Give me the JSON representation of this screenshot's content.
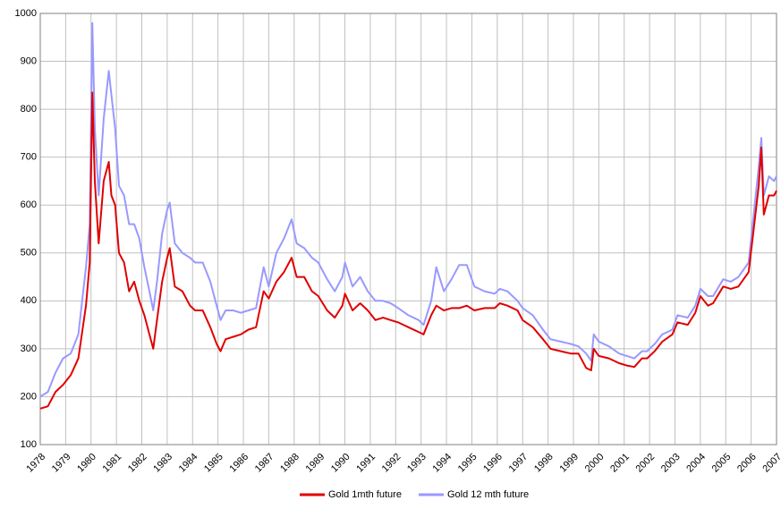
{
  "chart_data": {
    "type": "line",
    "x": [
      1978.0,
      1978.3,
      1978.6,
      1978.9,
      1979.2,
      1979.5,
      1979.8,
      1979.95,
      1980.05,
      1980.15,
      1980.3,
      1980.5,
      1980.7,
      1980.8,
      1980.95,
      1981.1,
      1981.3,
      1981.5,
      1981.7,
      1981.9,
      1982.1,
      1982.3,
      1982.45,
      1982.6,
      1982.8,
      1983.0,
      1983.1,
      1983.3,
      1983.6,
      1983.9,
      1984.1,
      1984.4,
      1984.7,
      1984.95,
      1985.1,
      1985.3,
      1985.6,
      1985.9,
      1986.2,
      1986.5,
      1986.8,
      1987.0,
      1987.3,
      1987.6,
      1987.9,
      1988.1,
      1988.4,
      1988.7,
      1988.95,
      1989.3,
      1989.6,
      1989.9,
      1990.0,
      1990.3,
      1990.6,
      1990.9,
      1991.2,
      1991.5,
      1991.8,
      1992.1,
      1992.5,
      1992.9,
      1993.1,
      1993.4,
      1993.6,
      1993.9,
      1994.2,
      1994.5,
      1994.8,
      1995.1,
      1995.5,
      1995.9,
      1996.1,
      1996.4,
      1996.8,
      1997.0,
      1997.4,
      1997.8,
      1998.1,
      1998.5,
      1998.9,
      1999.2,
      1999.5,
      1999.7,
      1999.8,
      2000.0,
      2000.4,
      2000.8,
      2001.1,
      2001.4,
      2001.7,
      2001.9,
      2002.2,
      2002.5,
      2002.9,
      2003.1,
      2003.5,
      2003.8,
      2004.0,
      2004.3,
      2004.5,
      2004.9,
      2005.2,
      2005.5,
      2005.9,
      2006.1,
      2006.3,
      2006.4,
      2006.5,
      2006.7,
      2006.9,
      2007.0
    ],
    "series": [
      {
        "name": "Gold 1mth future",
        "color": "#e00000",
        "values": [
          175,
          180,
          210,
          225,
          245,
          280,
          390,
          480,
          835,
          650,
          520,
          650,
          690,
          620,
          600,
          500,
          480,
          420,
          440,
          400,
          370,
          330,
          300,
          360,
          440,
          490,
          510,
          430,
          420,
          390,
          380,
          380,
          345,
          310,
          295,
          320,
          325,
          330,
          340,
          345,
          420,
          405,
          440,
          460,
          490,
          450,
          450,
          420,
          410,
          380,
          365,
          390,
          415,
          380,
          395,
          380,
          360,
          365,
          360,
          355,
          345,
          335,
          330,
          370,
          390,
          380,
          385,
          385,
          390,
          380,
          385,
          385,
          395,
          390,
          380,
          360,
          345,
          320,
          300,
          295,
          290,
          290,
          260,
          255,
          300,
          285,
          280,
          270,
          265,
          262,
          280,
          280,
          295,
          315,
          330,
          355,
          350,
          375,
          410,
          390,
          395,
          430,
          425,
          430,
          460,
          550,
          640,
          720,
          580,
          620,
          620,
          630
        ]
      },
      {
        "name": "Gold 12 mth future",
        "color": "#9999ff",
        "values": [
          200,
          210,
          250,
          280,
          290,
          330,
          470,
          560,
          980,
          760,
          620,
          780,
          880,
          830,
          760,
          640,
          620,
          560,
          560,
          530,
          470,
          420,
          380,
          440,
          540,
          590,
          605,
          520,
          500,
          490,
          480,
          480,
          440,
          390,
          360,
          380,
          380,
          375,
          380,
          385,
          470,
          430,
          500,
          530,
          570,
          520,
          510,
          490,
          480,
          445,
          420,
          450,
          480,
          430,
          450,
          420,
          400,
          400,
          395,
          385,
          370,
          360,
          350,
          400,
          470,
          420,
          445,
          475,
          475,
          430,
          420,
          415,
          425,
          420,
          400,
          385,
          370,
          340,
          320,
          315,
          310,
          305,
          290,
          275,
          330,
          315,
          305,
          290,
          285,
          280,
          295,
          295,
          310,
          330,
          340,
          370,
          365,
          390,
          425,
          410,
          410,
          445,
          440,
          450,
          480,
          580,
          680,
          740,
          620,
          660,
          650,
          660
        ]
      }
    ],
    "xlim": [
      1978,
      2007
    ],
    "xticks": [
      1978,
      1979,
      1980,
      1981,
      1982,
      1983,
      1984,
      1985,
      1986,
      1987,
      1988,
      1989,
      1990,
      1991,
      1992,
      1993,
      1994,
      1995,
      1996,
      1997,
      1998,
      1999,
      2000,
      2001,
      2002,
      2003,
      2004,
      2005,
      2006,
      2007
    ],
    "ylim": [
      100,
      1000
    ],
    "yticks": [
      100,
      200,
      300,
      400,
      500,
      600,
      700,
      800,
      900,
      1000
    ],
    "grid": true,
    "legend": "bottom"
  }
}
